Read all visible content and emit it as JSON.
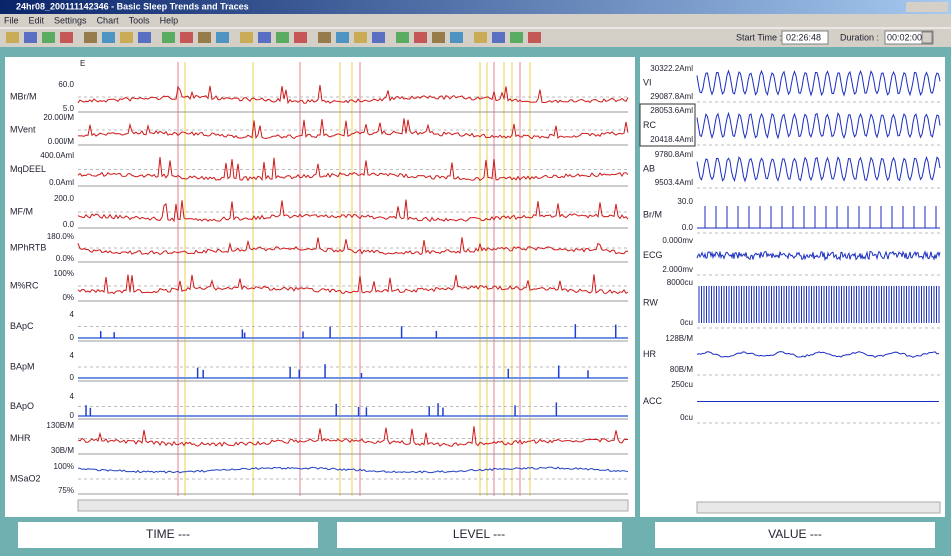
{
  "window": {
    "title": "24hr08_200111142346 - Basic Sleep Trends and Traces"
  },
  "menu": [
    "File",
    "Edit",
    "Settings",
    "Chart",
    "Tools",
    "Help"
  ],
  "toolbar": {
    "start_time_label": "Start Time :",
    "start_time": "02:26:48",
    "duration_label": "Duration :",
    "duration": "00:02:00"
  },
  "trend_panel": {
    "marker": "E",
    "channels": [
      {
        "max": "60.0",
        "name": "MBr/M",
        "min": "5.0"
      },
      {
        "max": "20.00l/M",
        "name": "MVent",
        "min": "0.00l/M"
      },
      {
        "max": "400.0Aml",
        "name": "MqDEEL",
        "min": "0.0Aml"
      },
      {
        "max": "200.0",
        "name": "MF/M",
        "min": "0.0"
      },
      {
        "max": "180.0%",
        "name": "MPhRTB",
        "min": "0.0%"
      },
      {
        "max": "100%",
        "name": "M%RC",
        "min": "0%"
      },
      {
        "max": "4",
        "name": "BApC",
        "min": "0"
      },
      {
        "max": "4",
        "name": "BApM",
        "min": "0"
      },
      {
        "max": "4",
        "name": "BApO",
        "min": "0"
      },
      {
        "max": "130B/M",
        "name": "MHR",
        "min": "30B/M"
      },
      {
        "max": "100%",
        "name": "MSaO2",
        "min": "75%"
      }
    ]
  },
  "trace_panel": {
    "channels": [
      {
        "max": "30322.2Aml",
        "name": "VI",
        "min": "29087.8Aml"
      },
      {
        "max": "28053.6Aml",
        "name": "RC",
        "min": "20418.4Aml"
      },
      {
        "max": "9780.8Aml",
        "name": "AB",
        "min": "9503.4Aml"
      },
      {
        "max": "30.0",
        "name": "Br/M",
        "min": "0.0"
      },
      {
        "max": "0.000mv",
        "name": "ECG",
        "min": "2.000mv"
      },
      {
        "max": "8000cu",
        "name": "RW",
        "min": "0cu"
      },
      {
        "max": "128B/M",
        "name": "HR",
        "min": "80B/M"
      },
      {
        "max": "250cu",
        "name": "ACC",
        "min": "0cu"
      }
    ]
  },
  "status": [
    "TIME ---",
    "LEVEL ---",
    "VALUE ---"
  ]
}
